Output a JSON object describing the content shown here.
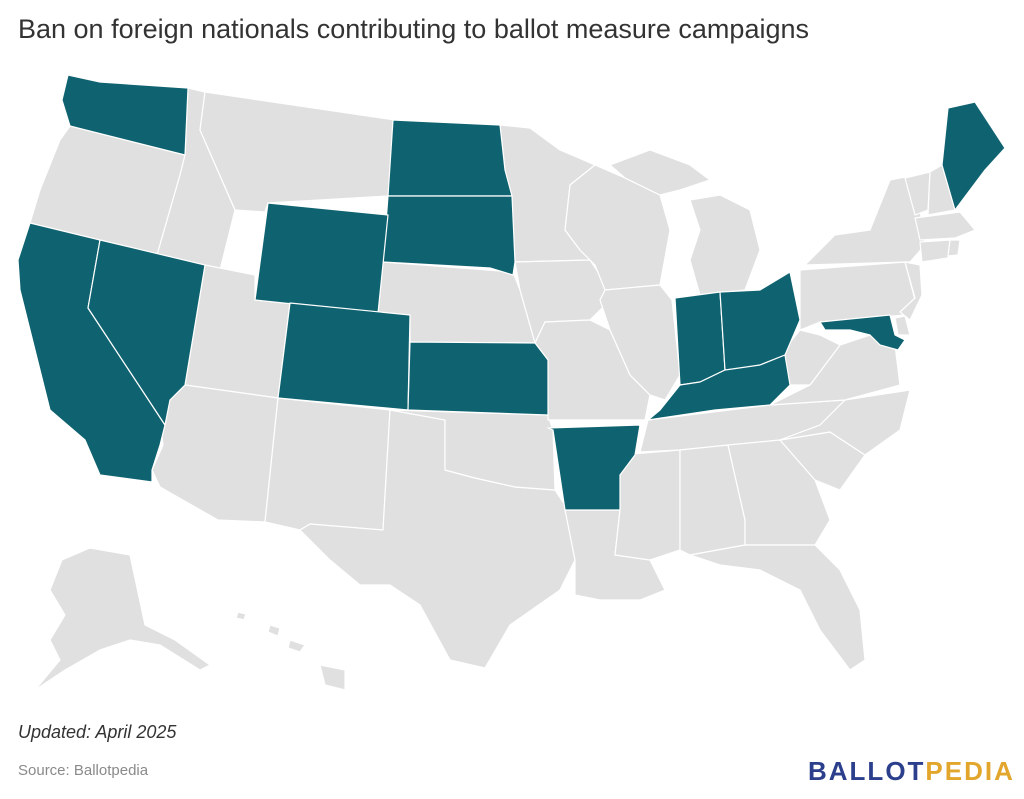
{
  "title": "Ban on foreign nationals contributing to ballot measure campaigns",
  "footer": {
    "updated": "Updated: April 2025",
    "source": "Source: Ballotpedia"
  },
  "logo": {
    "part1": "BALLOT",
    "part2": "PEDIA"
  },
  "colors": {
    "ban_state": "#0f6370",
    "other_state": "#e0e0e0",
    "logo_primary": "#2b3f8c",
    "logo_accent": "#e3a62c"
  },
  "map": {
    "highlighted_states": [
      "Washington",
      "California",
      "Nevada",
      "Wyoming",
      "Colorado",
      "North Dakota",
      "South Dakota",
      "Kansas",
      "Arkansas",
      "Indiana",
      "Ohio",
      "Kentucky",
      "Maryland",
      "Maine"
    ],
    "other_states": [
      "Oregon",
      "Idaho",
      "Montana",
      "Utah",
      "Arizona",
      "New Mexico",
      "Texas",
      "Oklahoma",
      "Nebraska",
      "Minnesota",
      "Iowa",
      "Missouri",
      "Louisiana",
      "Wisconsin",
      "Illinois",
      "Michigan",
      "Tennessee",
      "Mississippi",
      "Alabama",
      "Georgia",
      "Florida",
      "South Carolina",
      "North Carolina",
      "Virginia",
      "West Virginia",
      "Pennsylvania",
      "New York",
      "Vermont",
      "New Hampshire",
      "Massachusetts",
      "Connecticut",
      "Rhode Island",
      "New Jersey",
      "Delaware",
      "Alaska",
      "Hawaii"
    ]
  }
}
